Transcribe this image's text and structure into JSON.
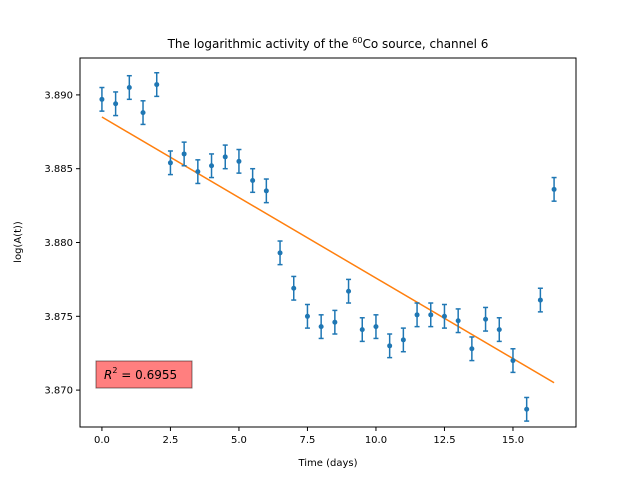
{
  "chart_data": {
    "type": "scatter",
    "title_main": "The logarithmic activity of the ",
    "title_sup": "60",
    "title_rest": "Co source, channel 6",
    "xlabel": "Time (days)",
    "ylabel": "log(A(t))",
    "xlim": [
      -0.8,
      17.3
    ],
    "ylim": [
      3.8675,
      3.8925
    ],
    "x_ticks": [
      0.0,
      2.5,
      5.0,
      7.5,
      10.0,
      12.5,
      15.0
    ],
    "x_tick_labels": [
      "0.0",
      "2.5",
      "5.0",
      "7.5",
      "10.0",
      "12.5",
      "15.0"
    ],
    "y_ticks": [
      3.87,
      3.875,
      3.88,
      3.885,
      3.89
    ],
    "y_tick_labels": [
      "3.870",
      "3.875",
      "3.880",
      "3.885",
      "3.890"
    ],
    "grid": false,
    "series": [
      {
        "type": "errorbar",
        "color": "#1f77b4",
        "x": [
          0,
          0.5,
          1,
          1.5,
          2,
          2.5,
          3,
          3.5,
          4,
          4.5,
          5,
          5.5,
          6,
          6.5,
          7,
          7.5,
          8,
          8.5,
          9,
          9.5,
          10,
          10.5,
          11,
          11.5,
          12,
          12.5,
          13,
          13.5,
          14,
          14.5,
          15,
          15.5,
          16,
          16.5
        ],
        "y": [
          3.8897,
          3.8894,
          3.8905,
          3.8888,
          3.8907,
          3.8854,
          3.886,
          3.8848,
          3.8852,
          3.8858,
          3.8855,
          3.8842,
          3.8835,
          3.8793,
          3.8769,
          3.875,
          3.8743,
          3.8746,
          3.8767,
          3.8741,
          3.8743,
          3.873,
          3.8734,
          3.8751,
          3.8751,
          3.875,
          3.8747,
          3.8728,
          3.8748,
          3.8741,
          3.872,
          3.8687,
          3.8761,
          3.8836
        ],
        "yerr": 0.0008
      },
      {
        "type": "line",
        "color": "#ff7f0e",
        "x": [
          0,
          16.5
        ],
        "y": [
          3.8885,
          3.8705
        ]
      }
    ],
    "annotation": {
      "label_italic": "R",
      "label_sup": "2",
      "label_rest": " = 0.6955",
      "box_color": "#ff0000"
    }
  }
}
